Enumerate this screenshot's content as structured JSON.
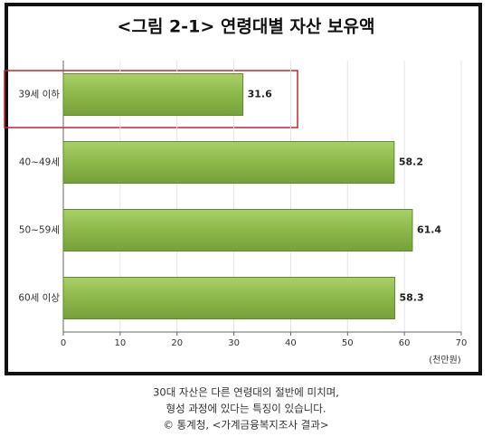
{
  "chart_data": {
    "type": "bar",
    "orientation": "horizontal",
    "title": "<그림 2-1> 연령대별 자산 보유액",
    "categories": [
      "39세 이하",
      "40~49세",
      "50~59세",
      "60세 이상"
    ],
    "values": [
      31.6,
      58.2,
      61.4,
      58.3
    ],
    "color": "#8cb84a",
    "xlim": [
      0,
      70
    ],
    "xticks": [
      0,
      10,
      20,
      30,
      40,
      50,
      60,
      70
    ],
    "x_unit": "(천만원)",
    "grid": true
  },
  "caption": [
    "30대 자산은 다른 연령대의 절반에 미치며,",
    "형성 과정에 있다는 특징이 있습니다.",
    "© 통계청, <가계금융복지조사 결과>"
  ]
}
